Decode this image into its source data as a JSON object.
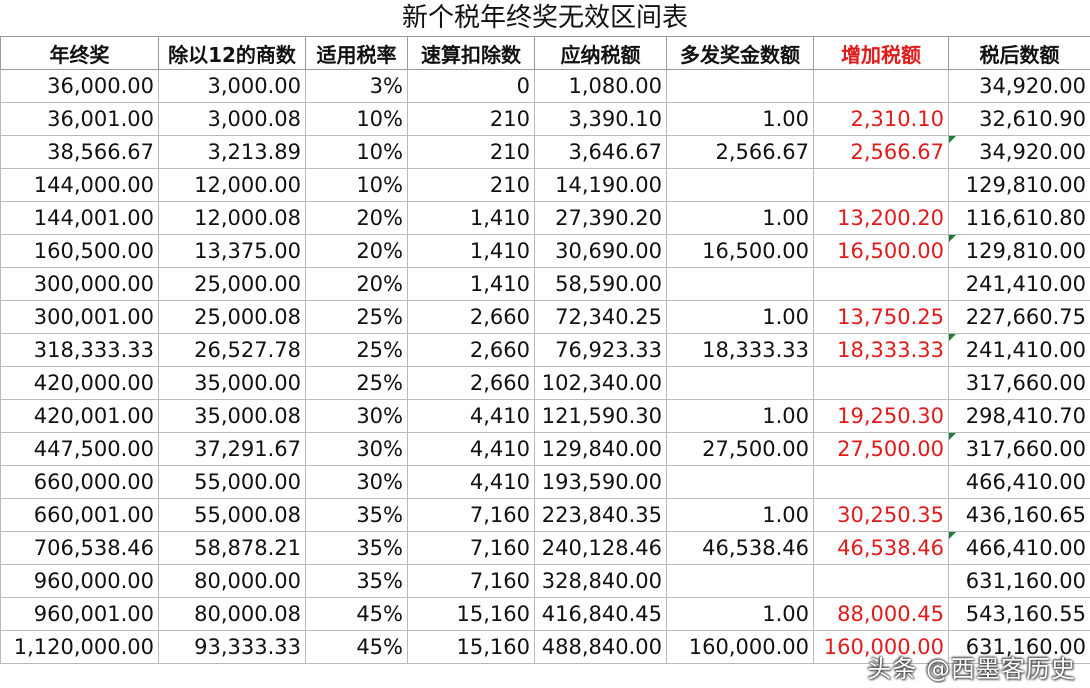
{
  "title": "新个税年终奖无效区间表",
  "headers": [
    "年终奖",
    "除以12的商数",
    "适用税率",
    "速算扣除数",
    "应纳税额",
    "多发奖金数额",
    "增加税额",
    "税后数额"
  ],
  "rows": [
    [
      "36,000.00",
      "3,000.00",
      "3%",
      "0",
      "1,080.00",
      "",
      "",
      "34,920.00"
    ],
    [
      "36,001.00",
      "3,000.08",
      "10%",
      "210",
      "3,390.10",
      "1.00",
      "2,310.10",
      "32,610.90"
    ],
    [
      "38,566.67",
      "3,213.89",
      "10%",
      "210",
      "3,646.67",
      "2,566.67",
      "2,566.67",
      "34,920.00"
    ],
    [
      "144,000.00",
      "12,000.00",
      "10%",
      "210",
      "14,190.00",
      "",
      "",
      "129,810.00"
    ],
    [
      "144,001.00",
      "12,000.08",
      "20%",
      "1,410",
      "27,390.20",
      "1.00",
      "13,200.20",
      "116,610.80"
    ],
    [
      "160,500.00",
      "13,375.00",
      "20%",
      "1,410",
      "30,690.00",
      "16,500.00",
      "16,500.00",
      "129,810.00"
    ],
    [
      "300,000.00",
      "25,000.00",
      "20%",
      "1,410",
      "58,590.00",
      "",
      "",
      "241,410.00"
    ],
    [
      "300,001.00",
      "25,000.08",
      "25%",
      "2,660",
      "72,340.25",
      "1.00",
      "13,750.25",
      "227,660.75"
    ],
    [
      "318,333.33",
      "26,527.78",
      "25%",
      "2,660",
      "76,923.33",
      "18,333.33",
      "18,333.33",
      "241,410.00"
    ],
    [
      "420,000.00",
      "35,000.00",
      "25%",
      "2,660",
      "102,340.00",
      "",
      "",
      "317,660.00"
    ],
    [
      "420,001.00",
      "35,000.08",
      "30%",
      "4,410",
      "121,590.30",
      "1.00",
      "19,250.30",
      "298,410.70"
    ],
    [
      "447,500.00",
      "37,291.67",
      "30%",
      "4,410",
      "129,840.00",
      "27,500.00",
      "27,500.00",
      "317,660.00"
    ],
    [
      "660,000.00",
      "55,000.00",
      "30%",
      "4,410",
      "193,590.00",
      "",
      "",
      "466,410.00"
    ],
    [
      "660,001.00",
      "55,000.08",
      "35%",
      "7,160",
      "223,840.35",
      "1.00",
      "30,250.35",
      "436,160.65"
    ],
    [
      "706,538.46",
      "58,878.21",
      "35%",
      "7,160",
      "240,128.46",
      "46,538.46",
      "46,538.46",
      "466,410.00"
    ],
    [
      "960,000.00",
      "80,000.00",
      "35%",
      "7,160",
      "328,840.00",
      "",
      "",
      "631,160.00"
    ],
    [
      "960,001.00",
      "80,000.08",
      "45%",
      "15,160",
      "416,840.45",
      "1.00",
      "88,000.45",
      "543,160.55"
    ],
    [
      "1,120,000.00",
      "93,333.33",
      "45%",
      "15,160",
      "488,840.00",
      "160,000.00",
      "160,000.00",
      "631,160.00"
    ]
  ],
  "flagged_rows": [
    2,
    5,
    8,
    11,
    14
  ],
  "watermark": "头条 @西墨客历史",
  "colors": {
    "increase_tax": "#e11b1b",
    "grid": "#b9b9b9",
    "cell_flag": "#1f7a3a"
  }
}
